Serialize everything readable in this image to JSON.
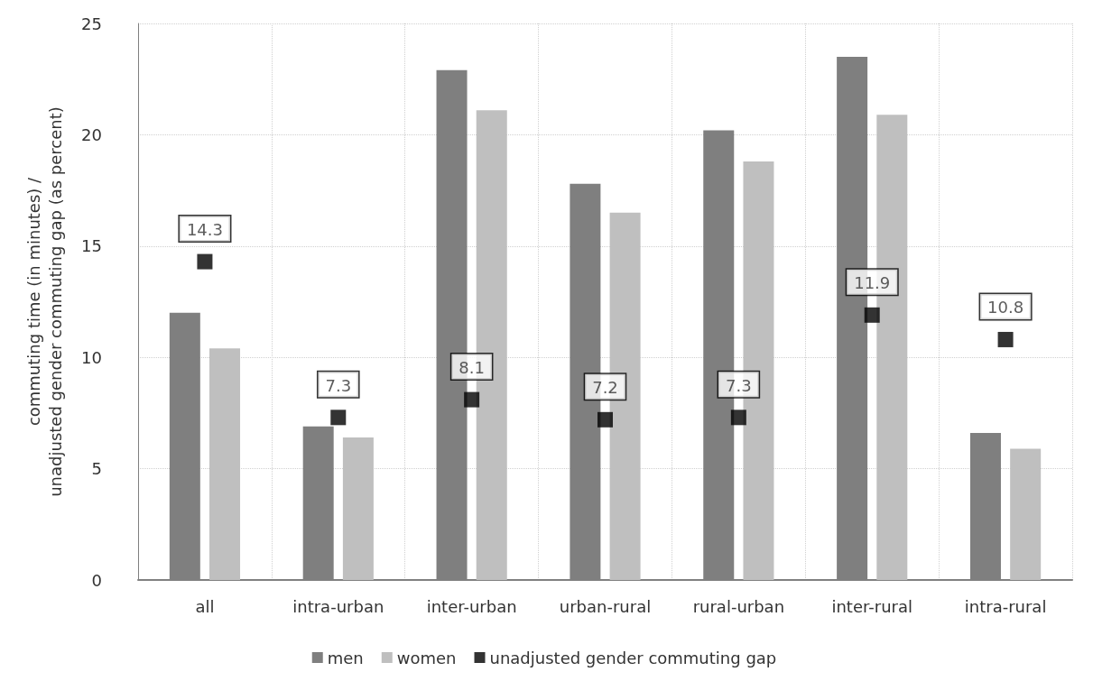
{
  "chart_data": {
    "type": "bar",
    "ylabel": "commuting time (in minutes) /\nunadjusted gender commuting gap (as percent)",
    "categories": [
      "all",
      "intra-urban",
      "inter-urban",
      "urban-rural",
      "rural-urban",
      "inter-rural",
      "intra-rural"
    ],
    "series": [
      {
        "name": "men",
        "color": "#7f7f7f",
        "values": [
          12.0,
          6.9,
          22.9,
          17.8,
          20.2,
          23.5,
          6.6
        ]
      },
      {
        "name": "women",
        "color": "#bfbfbf",
        "values": [
          10.4,
          6.4,
          21.1,
          16.5,
          18.8,
          20.9,
          5.9
        ]
      },
      {
        "name": "unadjusted gender commuting gap",
        "type": "scatter",
        "marker": "square",
        "color": "#000000",
        "values": [
          14.3,
          7.3,
          8.1,
          7.2,
          7.3,
          11.9,
          10.8
        ],
        "value_labels": [
          "14.3",
          "7.3",
          "8.1",
          "7.2",
          "7.3",
          "11.9",
          "10.8"
        ]
      }
    ],
    "ylim": [
      0,
      25
    ],
    "yticks": [
      0,
      5,
      10,
      15,
      20,
      25
    ],
    "grid": true,
    "legend": "bottom"
  }
}
